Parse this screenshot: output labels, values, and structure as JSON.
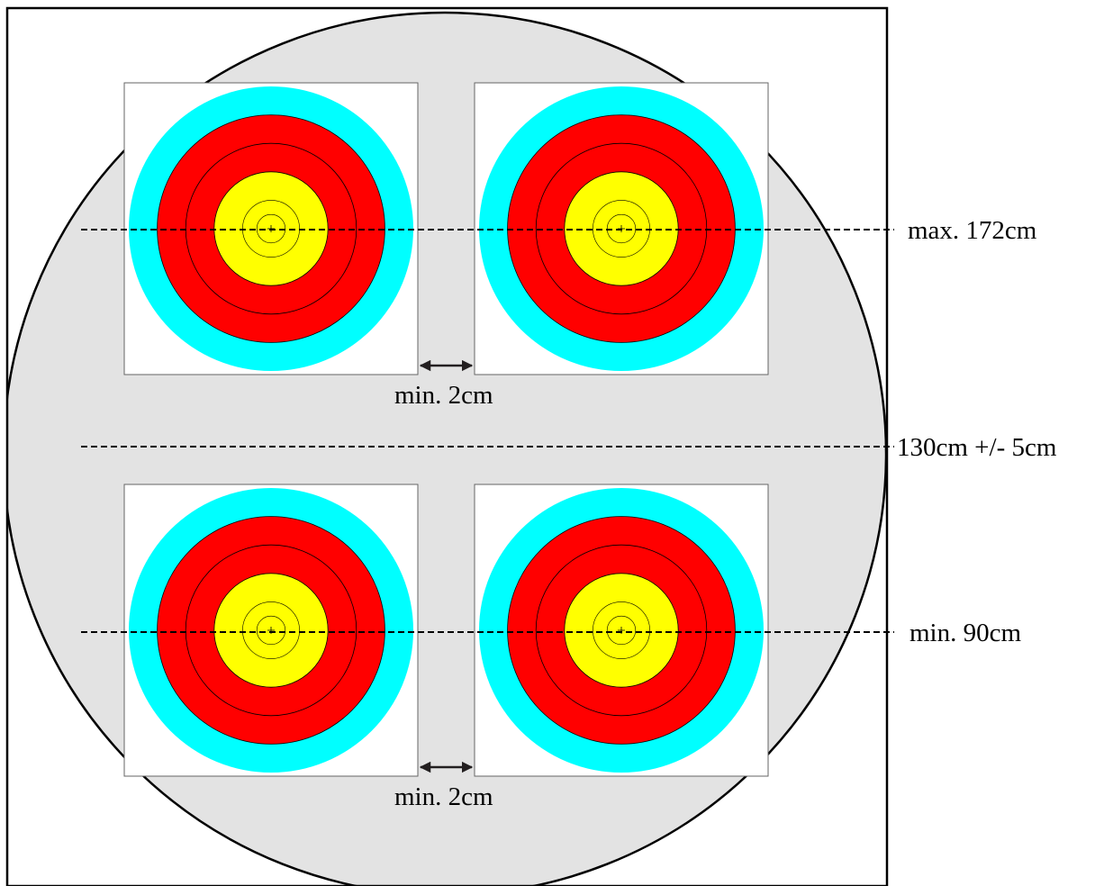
{
  "labels": {
    "top_line": "max. 172cm",
    "middle_line": "130cm +/- 5cm",
    "bottom_line": "min. 90cm",
    "gap_top": "min. 2cm",
    "gap_bottom": "min. 2cm"
  },
  "colors": {
    "boss": "#e3e3e3",
    "outline": "#000000",
    "face_background": "#ffffff",
    "blue_ring": "#00ffff",
    "red_ring": "#ff0000",
    "gold_ring": "#ffff00",
    "arrow": "#231f20"
  },
  "target_faces": [
    {
      "name": "top-left"
    },
    {
      "name": "top-right"
    },
    {
      "name": "bottom-left"
    },
    {
      "name": "bottom-right"
    }
  ]
}
